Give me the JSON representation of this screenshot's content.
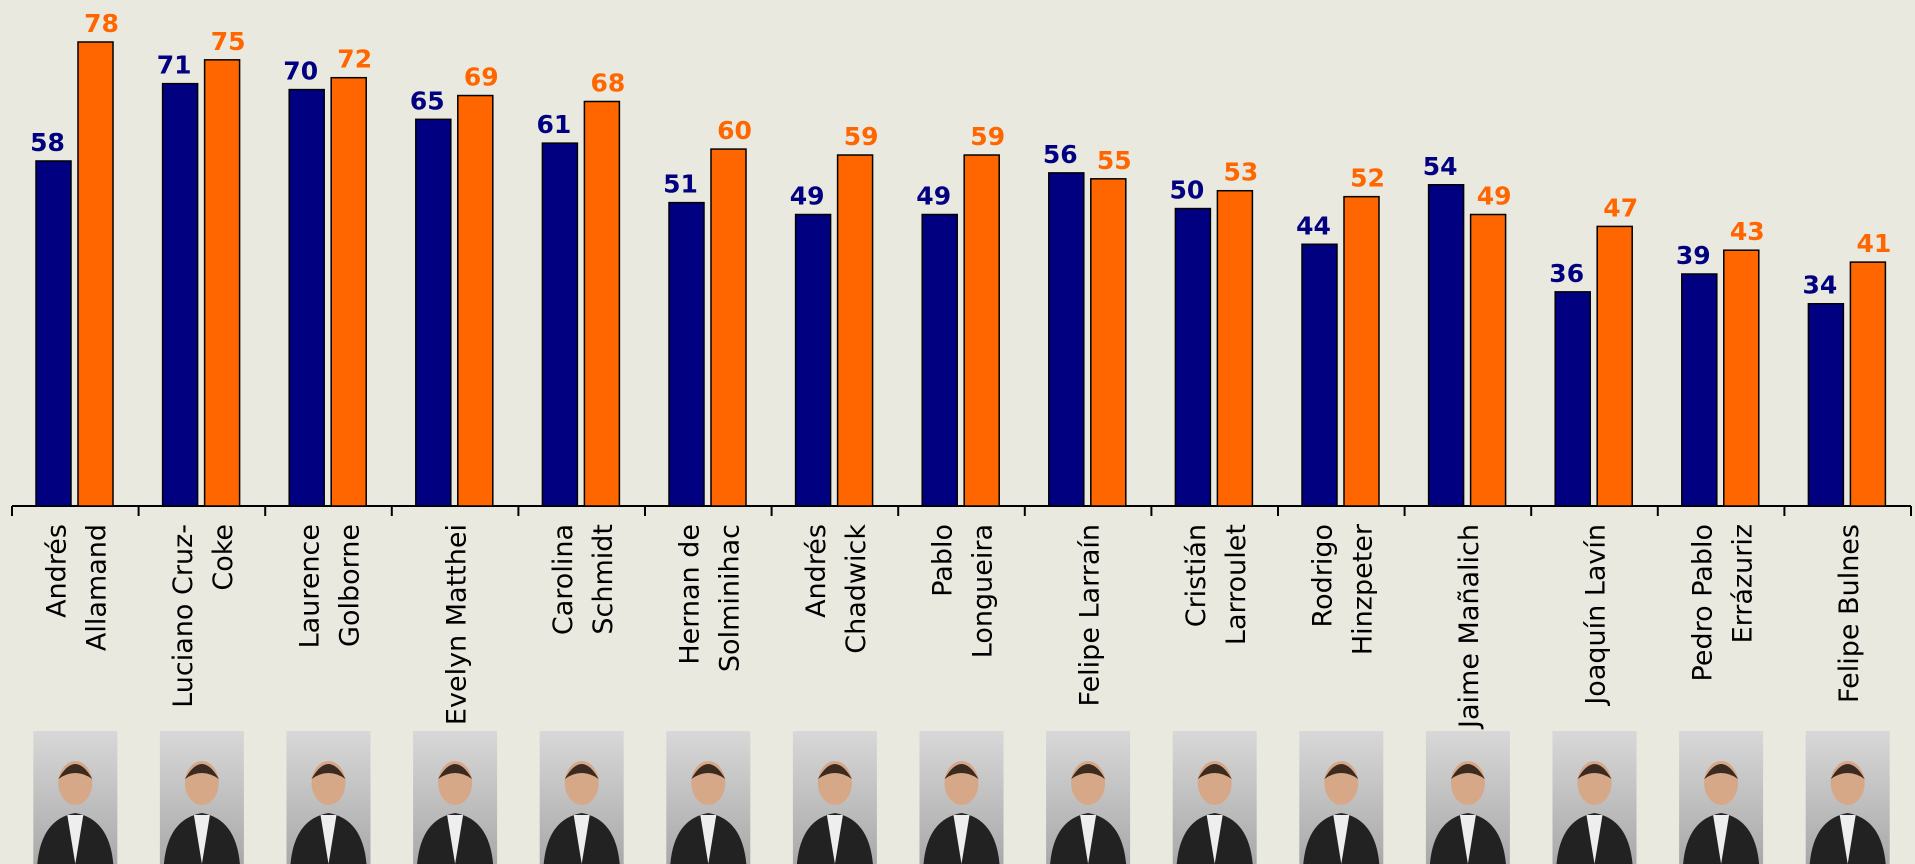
{
  "chart_data": {
    "type": "bar",
    "categories": [
      [
        "Andrés",
        "Allamand"
      ],
      [
        "Luciano Cruz-",
        "Coke"
      ],
      [
        "Laurence",
        "Golborne"
      ],
      [
        "Evelyn Matthei"
      ],
      [
        "Carolina",
        "Schmidt"
      ],
      [
        "Hernan de",
        "Solminihac"
      ],
      [
        "Andrés",
        "Chadwick"
      ],
      [
        "Pablo",
        "Longueira"
      ],
      [
        "Felipe Larraín"
      ],
      [
        "Cristián",
        "Larroulet"
      ],
      [
        "Rodrigo",
        "Hinzpeter"
      ],
      [
        "Jaime Mañalich"
      ],
      [
        "Joaquín Lavín"
      ],
      [
        "Pedro Pablo",
        "Errázuriz"
      ],
      [
        "Felipe Bulnes"
      ]
    ],
    "series": [
      {
        "color": "#000080",
        "values": [
          58,
          71,
          70,
          65,
          61,
          51,
          49,
          49,
          56,
          50,
          44,
          54,
          36,
          39,
          34
        ]
      },
      {
        "color": "#ff6600",
        "values": [
          78,
          75,
          72,
          69,
          68,
          60,
          59,
          59,
          55,
          53,
          52,
          49,
          47,
          43,
          41
        ]
      }
    ]
  }
}
